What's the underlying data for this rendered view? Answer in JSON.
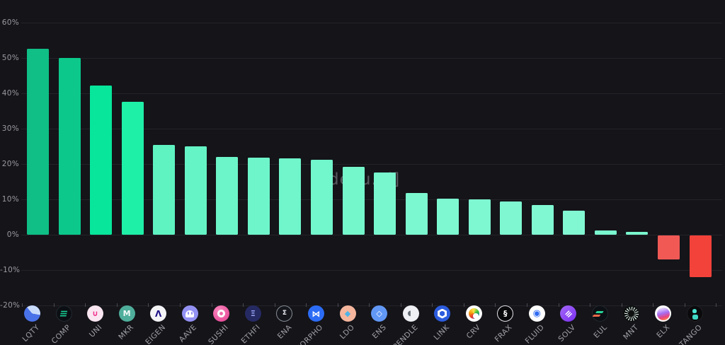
{
  "watermark": "[dexu.ai]",
  "chart_data": {
    "type": "bar",
    "title": "",
    "xlabel": "",
    "ylabel": "",
    "unit": "%",
    "ylim": [
      -20,
      60
    ],
    "grid": "horizontal gridlines every 10%",
    "legend": "none",
    "y_ticks": [
      {
        "label": "60%",
        "value": 60
      },
      {
        "label": "50%",
        "value": 50
      },
      {
        "label": "40%",
        "value": 40
      },
      {
        "label": "30%",
        "value": 30
      },
      {
        "label": "20%",
        "value": 20
      },
      {
        "label": "10%",
        "value": 10
      },
      {
        "label": "0%",
        "value": 0
      },
      {
        "label": "-10%",
        "value": -10
      },
      {
        "label": "-20%",
        "value": -20
      }
    ],
    "bars": [
      {
        "label": "LQTY",
        "value": 52.6,
        "color": "#0fbf85",
        "icon": "liquity-icon"
      },
      {
        "label": "COMP",
        "value": 50.1,
        "color": "#0cc98b",
        "icon": "compound-icon"
      },
      {
        "label": "UNI",
        "value": 42.2,
        "color": "#07e69a",
        "icon": "uniswap-icon"
      },
      {
        "label": "MKR",
        "value": 37.7,
        "color": "#1ff0a7",
        "icon": "maker-icon"
      },
      {
        "label": "EIGEN",
        "value": 25.4,
        "color": "#5ff3c2",
        "icon": "eigenlayer-icon"
      },
      {
        "label": "AAVE",
        "value": 25.0,
        "color": "#65f4c5",
        "icon": "aave-icon"
      },
      {
        "label": "SUSHI",
        "value": 22.0,
        "color": "#6cf5c8",
        "icon": "sushi-icon"
      },
      {
        "label": "ETHFI",
        "value": 21.9,
        "color": "#6ef5c9",
        "icon": "etherfi-icon"
      },
      {
        "label": "ENA",
        "value": 21.7,
        "color": "#70f6ca",
        "icon": "ethena-icon"
      },
      {
        "label": "MORPHO",
        "value": 21.2,
        "color": "#72f6cb",
        "icon": "morpho-icon"
      },
      {
        "label": "LDO",
        "value": 19.2,
        "color": "#75f7cc",
        "icon": "lido-icon"
      },
      {
        "label": "ENS",
        "value": 17.6,
        "color": "#78f7ce",
        "icon": "ens-icon"
      },
      {
        "label": "PENDLE",
        "value": 11.8,
        "color": "#7bf8cf",
        "icon": "pendle-icon"
      },
      {
        "label": "LINK",
        "value": 10.2,
        "color": "#7df8d0",
        "icon": "chainlink-icon"
      },
      {
        "label": "CRV",
        "value": 10.1,
        "color": "#7ef8d1",
        "icon": "curve-icon"
      },
      {
        "label": "FRAX",
        "value": 9.5,
        "color": "#7ff8d1",
        "icon": "frax-icon"
      },
      {
        "label": "FLUID",
        "value": 8.4,
        "color": "#80f8d2",
        "icon": "fluid-icon"
      },
      {
        "label": "SOLV",
        "value": 6.9,
        "color": "#81f8d2",
        "icon": "solv-icon"
      },
      {
        "label": "EUL",
        "value": 1.2,
        "color": "#7af7ce",
        "icon": "euler-icon"
      },
      {
        "label": "MNT",
        "value": 0.9,
        "color": "#7af7ce",
        "icon": "mantle-icon"
      },
      {
        "label": "ELX",
        "value": -6.8,
        "color": "#f15955",
        "icon": "elixir-icon"
      },
      {
        "label": "TANGO",
        "value": -11.8,
        "color": "#f2423a",
        "icon": "tango-icon"
      }
    ]
  },
  "colors": {
    "background": "#141419",
    "gridline": "#232329",
    "y_label": "#9a9aa1",
    "x_label": "#a0a1a7",
    "tick": "#4a4a52",
    "positive_low": "#0fbf85",
    "positive_high": "#81f8d2",
    "negative": "#f2423a",
    "watermark_text": "#e3e8ee"
  }
}
